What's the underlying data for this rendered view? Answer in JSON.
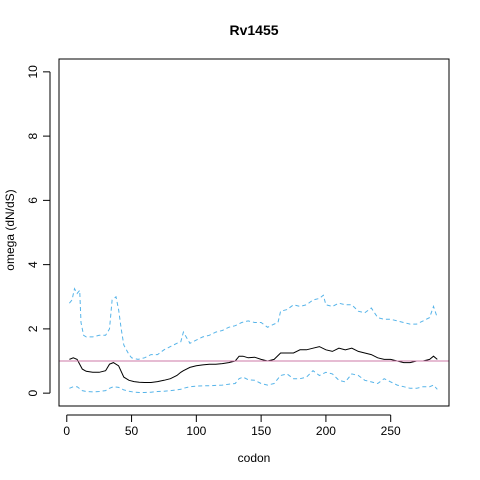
{
  "chart_data": {
    "type": "line",
    "title": "Rv1455",
    "xlabel": "codon",
    "ylabel": "omega (dN/dS)",
    "xlim": [
      -6,
      295
    ],
    "ylim": [
      -0.4,
      10.4
    ],
    "xticks": [
      0,
      50,
      100,
      150,
      200,
      250
    ],
    "yticks": [
      0,
      2,
      4,
      6,
      8,
      10
    ],
    "grid": false,
    "reference_line": {
      "y": 1,
      "color": "#cc79a7"
    },
    "series": [
      {
        "color": "#000000",
        "style": "solid",
        "x": [
          2,
          5,
          8,
          12,
          15,
          20,
          25,
          30,
          33,
          36,
          40,
          44,
          48,
          52,
          56,
          60,
          65,
          70,
          75,
          80,
          85,
          88,
          90,
          95,
          100,
          105,
          110,
          115,
          120,
          125,
          130,
          133,
          136,
          140,
          145,
          150,
          155,
          160,
          165,
          170,
          175,
          180,
          185,
          190,
          195,
          200,
          205,
          210,
          215,
          220,
          225,
          230,
          235,
          240,
          245,
          250,
          255,
          260,
          265,
          270,
          275,
          280,
          283,
          286
        ],
        "values": [
          1.05,
          1.1,
          1.05,
          0.75,
          0.68,
          0.65,
          0.65,
          0.7,
          0.9,
          0.95,
          0.85,
          0.5,
          0.4,
          0.36,
          0.34,
          0.33,
          0.33,
          0.36,
          0.4,
          0.45,
          0.55,
          0.65,
          0.7,
          0.8,
          0.85,
          0.88,
          0.9,
          0.9,
          0.92,
          0.95,
          1.0,
          1.15,
          1.15,
          1.1,
          1.12,
          1.05,
          1.0,
          1.05,
          1.25,
          1.25,
          1.25,
          1.35,
          1.35,
          1.4,
          1.45,
          1.35,
          1.3,
          1.4,
          1.35,
          1.4,
          1.3,
          1.25,
          1.2,
          1.1,
          1.05,
          1.05,
          1.0,
          0.95,
          0.95,
          1.0,
          1.0,
          1.05,
          1.15,
          1.05
        ]
      },
      {
        "color": "#56b4e9",
        "style": "dashed",
        "x": [
          2,
          4,
          6,
          8,
          10,
          11,
          13,
          15,
          20,
          25,
          30,
          33,
          35,
          38,
          40,
          42,
          44,
          48,
          50,
          55,
          60,
          65,
          70,
          75,
          80,
          85,
          88,
          90,
          95,
          100,
          105,
          110,
          115,
          120,
          125,
          130,
          135,
          140,
          145,
          150,
          155,
          160,
          163,
          165,
          170,
          175,
          180,
          185,
          190,
          195,
          198,
          200,
          205,
          210,
          215,
          220,
          225,
          230,
          235,
          240,
          245,
          250,
          255,
          260,
          265,
          270,
          275,
          280,
          283,
          286
        ],
        "values": [
          2.8,
          2.9,
          3.25,
          3.1,
          3.2,
          2.2,
          1.8,
          1.75,
          1.75,
          1.8,
          1.8,
          2.0,
          2.9,
          3.0,
          2.6,
          2.0,
          1.5,
          1.2,
          1.1,
          1.05,
          1.1,
          1.2,
          1.2,
          1.35,
          1.45,
          1.55,
          1.6,
          1.9,
          1.55,
          1.65,
          1.75,
          1.8,
          1.9,
          1.95,
          2.05,
          2.1,
          2.2,
          2.25,
          2.2,
          2.2,
          2.05,
          2.15,
          2.2,
          2.55,
          2.6,
          2.75,
          2.7,
          2.75,
          2.9,
          2.95,
          3.05,
          2.75,
          2.7,
          2.8,
          2.75,
          2.75,
          2.55,
          2.5,
          2.65,
          2.35,
          2.3,
          2.3,
          2.25,
          2.2,
          2.15,
          2.15,
          2.25,
          2.35,
          2.7,
          2.35
        ]
      },
      {
        "color": "#56b4e9",
        "style": "dashed",
        "x": [
          2,
          5,
          8,
          12,
          15,
          20,
          25,
          30,
          33,
          36,
          40,
          44,
          48,
          52,
          56,
          60,
          65,
          70,
          75,
          80,
          85,
          88,
          90,
          95,
          100,
          105,
          110,
          115,
          120,
          125,
          130,
          133,
          136,
          140,
          145,
          150,
          155,
          160,
          165,
          170,
          175,
          180,
          185,
          190,
          195,
          200,
          205,
          210,
          215,
          220,
          225,
          230,
          235,
          240,
          245,
          250,
          255,
          260,
          265,
          270,
          275,
          280,
          283,
          286
        ],
        "values": [
          0.15,
          0.2,
          0.2,
          0.08,
          0.05,
          0.04,
          0.05,
          0.08,
          0.15,
          0.2,
          0.18,
          0.1,
          0.06,
          0.03,
          0.02,
          0.02,
          0.03,
          0.05,
          0.06,
          0.08,
          0.1,
          0.12,
          0.15,
          0.2,
          0.22,
          0.23,
          0.23,
          0.24,
          0.25,
          0.28,
          0.3,
          0.45,
          0.5,
          0.42,
          0.4,
          0.3,
          0.25,
          0.3,
          0.55,
          0.6,
          0.45,
          0.45,
          0.5,
          0.7,
          0.55,
          0.65,
          0.6,
          0.4,
          0.35,
          0.6,
          0.55,
          0.4,
          0.35,
          0.3,
          0.45,
          0.35,
          0.25,
          0.2,
          0.15,
          0.15,
          0.2,
          0.2,
          0.25,
          0.12
        ]
      }
    ]
  }
}
